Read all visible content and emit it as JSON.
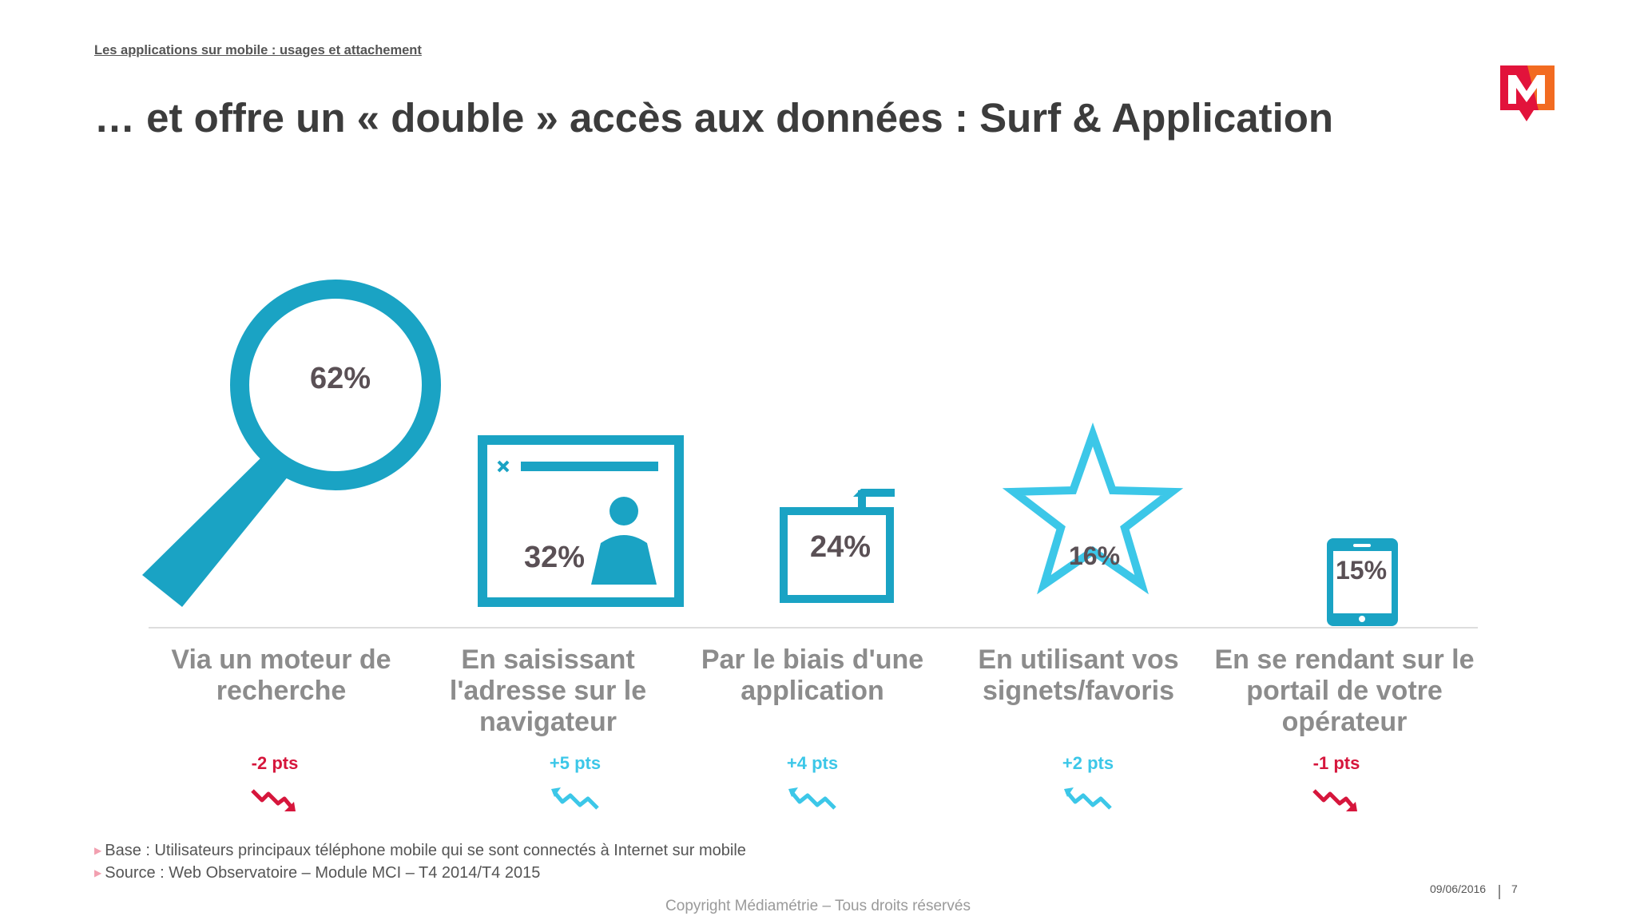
{
  "header": {
    "section_title": "Les applications sur mobile : usages et attachement",
    "title": "… et offre un « double » accès aux données : Surf & Application"
  },
  "colors": {
    "icon_blue": "#1aa3c4",
    "icon_light_blue": "#3cc7e8",
    "positive": "#3cc7e8",
    "negative": "#d6163c",
    "value_text": "#5a5055",
    "label_text": "#8c8c8c",
    "logo_red": "#e2133b",
    "logo_orange": "#f26b21"
  },
  "chart_data": {
    "type": "bar",
    "categories": [
      "Via un moteur de recherche",
      "En saisissant l'adresse sur le navigateur",
      "Par le biais d'une application",
      "En utilisant vos signets/favoris",
      "En se rendant sur le portail de votre opérateur"
    ],
    "values": [
      62,
      32,
      24,
      16,
      15
    ],
    "value_labels": [
      "62%",
      "32%",
      "24%",
      "16%",
      "15%"
    ],
    "icons": [
      "magnifier-icon",
      "browser-window-icon",
      "folder-icon",
      "star-icon",
      "tablet-icon"
    ],
    "label_lines": [
      [
        "Via un moteur de",
        "recherche"
      ],
      [
        "En saisissant",
        "l'adresse sur le",
        "navigateur"
      ],
      [
        "Par le biais d'une",
        "application"
      ],
      [
        "En utilisant vos",
        "signets/favoris"
      ],
      [
        "En se rendant sur le",
        "portail de votre",
        "opérateur"
      ]
    ],
    "changes": [
      {
        "label": "-2 pts",
        "direction": "down"
      },
      {
        "label": "+5 pts",
        "direction": "up"
      },
      {
        "label": "+4 pts",
        "direction": "up"
      },
      {
        "label": "+2 pts",
        "direction": "up"
      },
      {
        "label": "-1 pts",
        "direction": "down"
      }
    ],
    "ylim": [
      0,
      70
    ]
  },
  "footer": {
    "base": "Base : Utilisateurs principaux téléphone mobile qui se sont connectés à Internet sur mobile",
    "source": "Source : Web Observatoire – Module MCI – T4 2014/T4 2015",
    "copyright": "Copyright Médiamétrie – Tous droits réservés",
    "date": "09/06/2016",
    "page": "7"
  }
}
